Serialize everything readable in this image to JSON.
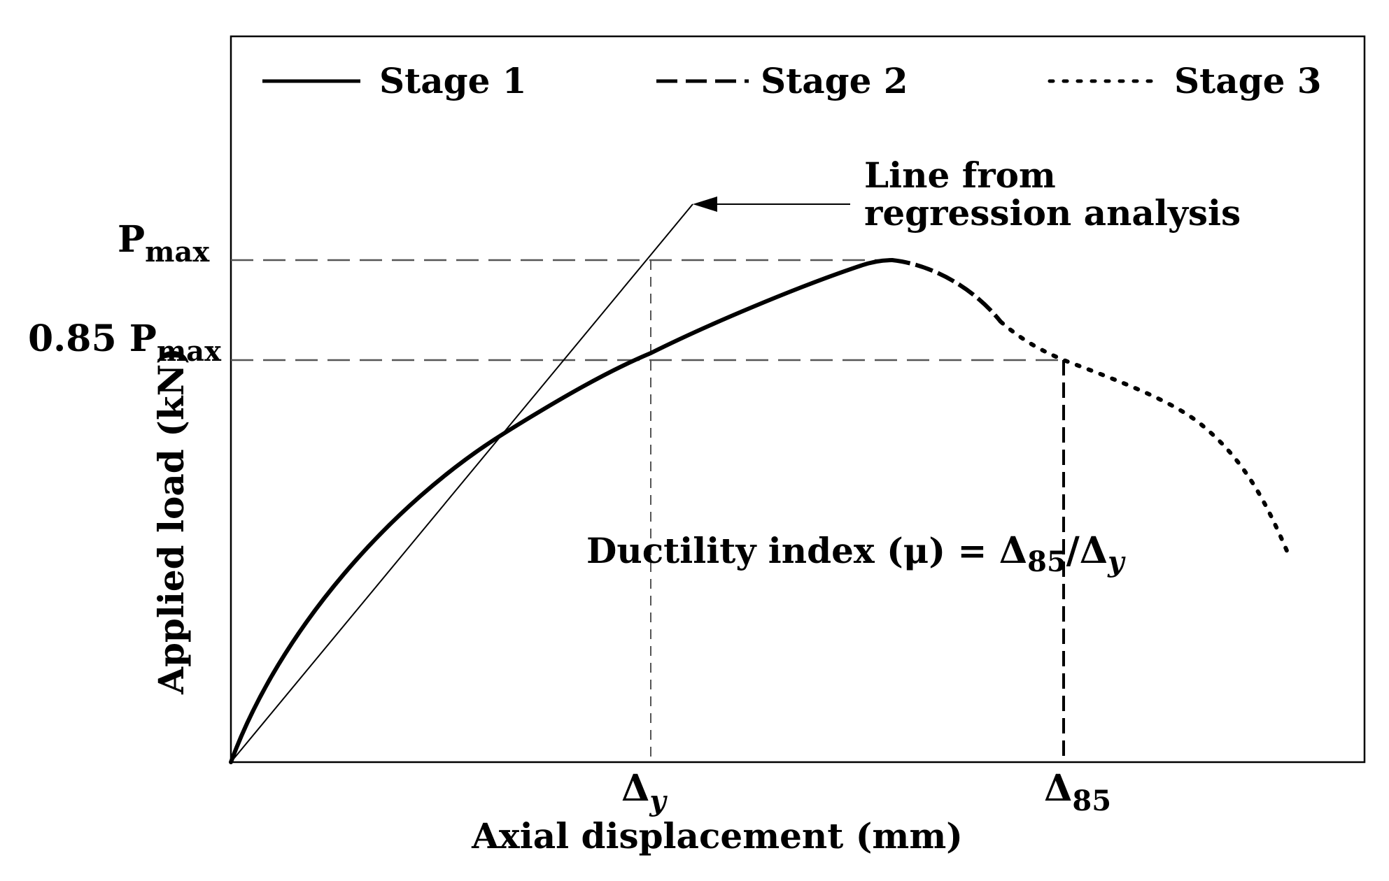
{
  "legend": {
    "stage1": "Stage 1",
    "stage2": "Stage 2",
    "stage3": "Stage 3"
  },
  "axes": {
    "xlabel": "Axial displacement (mm)",
    "ylabel": "Applied load (kN)"
  },
  "y_markers": {
    "pmax_base": "P",
    "pmax_sub": "max",
    "p085_prefix": "0.85 P",
    "p085_sub": "max"
  },
  "x_markers": {
    "dy_base": "Δ",
    "dy_sub": "y",
    "d85_base": "Δ",
    "d85_sub": "85"
  },
  "annotations": {
    "regression_line1": "Line from",
    "regression_line2": "regression analysis",
    "ductility_prefix": "Ductility index (μ) = ",
    "ductility_base1": "Δ",
    "ductility_sub1": "85",
    "ductility_slash": "/",
    "ductility_base2": "Δ",
    "ductility_sub2": "y"
  },
  "chart_data": {
    "type": "line",
    "xlabel": "Axial displacement (mm)",
    "ylabel": "Applied load (kN)",
    "grid": false,
    "legend_position": "top",
    "series": [
      {
        "name": "Stage 1",
        "style": "solid"
      },
      {
        "name": "Stage 2",
        "style": "dashed"
      },
      {
        "name": "Stage 3",
        "style": "dotted"
      }
    ],
    "x_ticks": [
      "Δy",
      "Δ85"
    ],
    "y_ticks": [
      "0.85 Pmax",
      "Pmax"
    ]
  },
  "colors": {
    "ink": "#000000",
    "guide": "#555555",
    "background": "#ffffff"
  }
}
